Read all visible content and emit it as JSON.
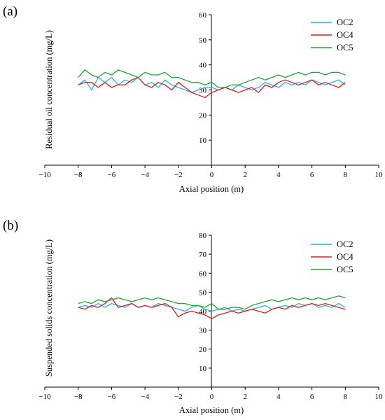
{
  "figure": {
    "panels": [
      {
        "label": "(a)",
        "xlabel": "Axial position (m)",
        "ylabel": "Residual oil concentration (mg/L)",
        "xlim": [
          -10,
          10
        ],
        "ylim": [
          0,
          60
        ],
        "xticks": [
          -10,
          -8,
          -6,
          -4,
          -2,
          0,
          2,
          4,
          6,
          8,
          10
        ],
        "yticks": [
          10,
          20,
          30,
          40,
          50,
          60
        ]
      },
      {
        "label": "(b)",
        "xlabel": "Axial position (m)",
        "ylabel": "Suspended solids concentration (mg/L)",
        "xlim": [
          -10,
          10
        ],
        "ylim": [
          0,
          80
        ],
        "xticks": [
          -10,
          -8,
          -6,
          -4,
          -2,
          0,
          2,
          4,
          6,
          8,
          10
        ],
        "yticks": [
          10,
          20,
          30,
          40,
          50,
          60,
          70,
          80
        ]
      }
    ],
    "legend": [
      "OC2",
      "OC4",
      "OC5"
    ],
    "colors": {
      "OC2": "#1eb8e6",
      "OC4": "#e31a1c",
      "OC5": "#21a336"
    }
  },
  "chart_data": [
    {
      "type": "line",
      "label": "(a)",
      "xlabel": "Axial position (m)",
      "ylabel": "Residual oil concentration (mg/L)",
      "xlim": [
        -10,
        10
      ],
      "ylim": [
        0,
        60
      ],
      "grid": false,
      "legend_position": "top-right",
      "x": [
        -8.0,
        -7.6,
        -7.2,
        -6.8,
        -6.4,
        -6.0,
        -5.6,
        -5.2,
        -4.8,
        -4.4,
        -4.0,
        -3.6,
        -3.2,
        -2.8,
        -2.4,
        -2.0,
        -1.6,
        -1.2,
        -0.8,
        -0.4,
        0.0,
        0.4,
        0.8,
        1.2,
        1.6,
        2.0,
        2.4,
        2.8,
        3.2,
        3.6,
        4.0,
        4.4,
        4.8,
        5.2,
        5.6,
        6.0,
        6.4,
        6.8,
        7.2,
        7.6,
        8.0
      ],
      "series": [
        {
          "name": "OC2",
          "values": [
            32,
            34,
            30,
            35,
            33,
            35,
            32,
            34,
            33,
            35,
            32,
            33,
            31,
            34,
            32,
            31,
            30,
            29,
            30,
            31,
            31,
            30,
            31,
            30,
            32,
            31,
            30,
            31,
            33,
            32,
            31,
            33,
            32,
            33,
            32,
            34,
            33,
            32,
            33,
            34,
            32
          ]
        },
        {
          "name": "OC4",
          "values": [
            32,
            33,
            33,
            31,
            33,
            31,
            32,
            32,
            34,
            35,
            32,
            31,
            33,
            32,
            30,
            33,
            31,
            29,
            28,
            27,
            29,
            30,
            31,
            30,
            29,
            30,
            31,
            29,
            32,
            31,
            33,
            34,
            33,
            32,
            33,
            34,
            32,
            33,
            32,
            31,
            33
          ]
        },
        {
          "name": "OC5",
          "values": [
            35,
            38,
            36,
            35,
            37,
            36,
            38,
            37,
            36,
            35,
            37,
            36,
            36,
            37,
            35,
            35,
            34,
            33,
            33,
            32,
            33,
            31,
            31,
            32,
            32,
            33,
            34,
            35,
            34,
            35,
            36,
            35,
            36,
            37,
            36,
            37,
            37,
            36,
            37,
            37,
            36
          ]
        }
      ]
    },
    {
      "type": "line",
      "label": "(b)",
      "xlabel": "Axial position (m)",
      "ylabel": "Suspended solids concentration (mg/L)",
      "xlim": [
        -10,
        10
      ],
      "ylim": [
        0,
        80
      ],
      "grid": false,
      "legend_position": "top-right",
      "x": [
        -8.0,
        -7.6,
        -7.2,
        -6.8,
        -6.4,
        -6.0,
        -5.6,
        -5.2,
        -4.8,
        -4.4,
        -4.0,
        -3.6,
        -3.2,
        -2.8,
        -2.4,
        -2.0,
        -1.6,
        -1.2,
        -0.8,
        -0.4,
        0.0,
        0.4,
        0.8,
        1.2,
        1.6,
        2.0,
        2.4,
        2.8,
        3.2,
        3.6,
        4.0,
        4.4,
        4.8,
        5.2,
        5.6,
        6.0,
        6.4,
        6.8,
        7.2,
        7.6,
        8.0
      ],
      "series": [
        {
          "name": "OC2",
          "values": [
            42,
            43,
            42,
            44,
            42,
            44,
            43,
            42,
            44,
            42,
            43,
            42,
            44,
            43,
            42,
            41,
            40,
            42,
            43,
            41,
            40,
            41,
            42,
            40,
            41,
            40,
            41,
            42,
            43,
            41,
            42,
            43,
            42,
            44,
            43,
            44,
            42,
            43,
            42,
            44,
            42
          ]
        },
        {
          "name": "OC4",
          "values": [
            42,
            41,
            43,
            42,
            44,
            47,
            42,
            43,
            44,
            42,
            43,
            42,
            43,
            44,
            42,
            37,
            39,
            40,
            39,
            38,
            36,
            38,
            39,
            40,
            39,
            40,
            41,
            40,
            39,
            41,
            42,
            41,
            43,
            42,
            43,
            44,
            43,
            44,
            43,
            42,
            41
          ]
        },
        {
          "name": "OC5",
          "values": [
            44,
            45,
            44,
            46,
            45,
            46,
            47,
            46,
            45,
            46,
            47,
            46,
            47,
            46,
            45,
            44,
            44,
            43,
            43,
            42,
            44,
            41,
            41,
            42,
            42,
            41,
            43,
            44,
            45,
            46,
            45,
            46,
            47,
            46,
            47,
            46,
            47,
            46,
            47,
            48,
            47
          ]
        }
      ]
    }
  ]
}
